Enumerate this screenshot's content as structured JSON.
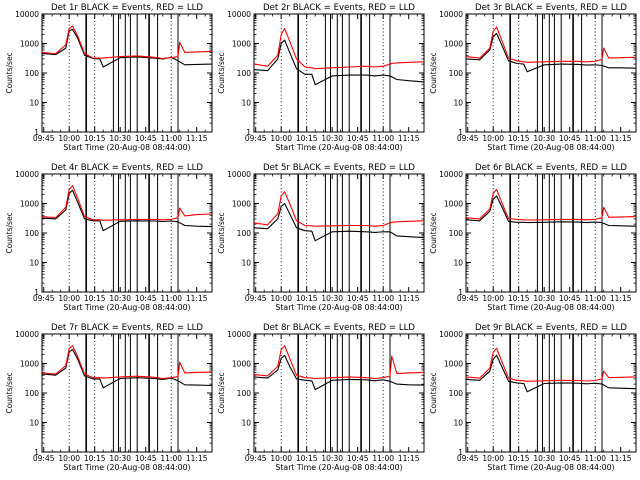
{
  "figure": {
    "xaxis_title": "Start Time (20-Aug-08 08:44:00)",
    "yaxis_title": "Counts/sec",
    "ytick_labels": [
      "1",
      "10",
      "100",
      "1000",
      "10000"
    ],
    "xtick_labels": [
      "09:45",
      "10:00",
      "10:15",
      "10:30",
      "10:45",
      "11:00",
      "11:15"
    ],
    "series_colors": {
      "Events": "#000000",
      "LLD": "#ff0000"
    }
  },
  "chart_data": [
    {
      "type": "line",
      "title": "Det 1r BLACK = Events, RED = LLD",
      "xlabel": "Start Time (20-Aug-08 08:44:00)",
      "ylabel": "Counts/sec",
      "xlim": [
        "09:44",
        "11:24"
      ],
      "ylim": [
        1,
        10000
      ],
      "yscale": "log",
      "series": [
        {
          "name": "Events",
          "color": "#000000",
          "x": [
            "09:44",
            "09:52",
            "09:58",
            "10:00",
            "10:02",
            "10:05",
            "10:09",
            "10:14",
            "10:18",
            "10:20",
            "10:30",
            "10:40",
            "10:50",
            "10:55",
            "11:00",
            "11:04",
            "11:08",
            "11:15",
            "11:24"
          ],
          "values": [
            460,
            420,
            700,
            2700,
            3000,
            1500,
            400,
            310,
            300,
            160,
            330,
            350,
            320,
            300,
            340,
            260,
            190,
            195,
            200
          ]
        },
        {
          "name": "LLD",
          "color": "#ff0000",
          "x": [
            "09:44",
            "09:52",
            "09:58",
            "10:00",
            "10:02",
            "10:05",
            "10:09",
            "10:14",
            "10:18",
            "10:20",
            "10:30",
            "10:40",
            "10:50",
            "10:55",
            "11:00",
            "11:04",
            "11:05",
            "11:08",
            "11:15",
            "11:24"
          ],
          "values": [
            500,
            450,
            900,
            3200,
            3900,
            1800,
            460,
            320,
            320,
            320,
            360,
            380,
            340,
            310,
            330,
            360,
            1100,
            500,
            520,
            540
          ]
        }
      ]
    },
    {
      "type": "line",
      "title": "Det 2r BLACK = Events, RED = LLD",
      "xlabel": "Start Time (20-Aug-08 08:44:00)",
      "ylabel": "Counts/sec",
      "xlim": [
        "09:44",
        "11:24"
      ],
      "ylim": [
        1,
        10000
      ],
      "yscale": "log",
      "series": [
        {
          "name": "Events",
          "color": "#000000",
          "x": [
            "09:44",
            "09:52",
            "09:58",
            "10:00",
            "10:02",
            "10:05",
            "10:09",
            "10:14",
            "10:18",
            "10:20",
            "10:30",
            "10:40",
            "10:50",
            "10:55",
            "11:00",
            "11:04",
            "11:08",
            "11:15",
            "11:24"
          ],
          "values": [
            130,
            120,
            300,
            1000,
            1300,
            500,
            140,
            90,
            90,
            40,
            80,
            85,
            85,
            80,
            85,
            80,
            60,
            55,
            50
          ]
        },
        {
          "name": "LLD",
          "color": "#ff0000",
          "x": [
            "09:44",
            "09:52",
            "09:58",
            "10:00",
            "10:02",
            "10:05",
            "10:09",
            "10:14",
            "10:18",
            "10:20",
            "10:30",
            "10:40",
            "10:50",
            "10:55",
            "11:00",
            "11:04",
            "11:05",
            "11:08",
            "11:15",
            "11:24"
          ],
          "values": [
            200,
            170,
            400,
            2000,
            3200,
            1200,
            300,
            160,
            150,
            140,
            150,
            160,
            170,
            160,
            170,
            200,
            210,
            220,
            230,
            240
          ]
        }
      ]
    },
    {
      "type": "line",
      "title": "Det 3r BLACK = Events, RED = LLD",
      "xlabel": "Start Time (20-Aug-08 08:44:00)",
      "ylabel": "Counts/sec",
      "xlim": [
        "09:44",
        "11:24"
      ],
      "ylim": [
        1,
        10000
      ],
      "yscale": "log",
      "series": [
        {
          "name": "Events",
          "color": "#000000",
          "x": [
            "09:44",
            "09:52",
            "09:58",
            "10:00",
            "10:02",
            "10:05",
            "10:09",
            "10:14",
            "10:18",
            "10:20",
            "10:30",
            "10:40",
            "10:50",
            "10:55",
            "11:00",
            "11:04",
            "11:08",
            "11:15",
            "11:24"
          ],
          "values": [
            300,
            280,
            600,
            1700,
            2200,
            900,
            260,
            210,
            200,
            110,
            190,
            200,
            195,
            185,
            190,
            180,
            150,
            150,
            145
          ]
        },
        {
          "name": "LLD",
          "color": "#ff0000",
          "x": [
            "09:44",
            "09:52",
            "09:58",
            "10:00",
            "10:02",
            "10:05",
            "10:09",
            "10:14",
            "10:18",
            "10:20",
            "10:30",
            "10:40",
            "10:50",
            "10:55",
            "11:00",
            "11:04",
            "11:05",
            "11:08",
            "11:15",
            "11:24"
          ],
          "values": [
            360,
            320,
            700,
            2600,
            3600,
            1300,
            320,
            260,
            240,
            230,
            240,
            250,
            250,
            240,
            250,
            290,
            700,
            320,
            330,
            340
          ]
        }
      ]
    },
    {
      "type": "line",
      "title": "Det 4r BLACK = Events, RED = LLD",
      "xlabel": "Start Time (20-Aug-08 08:44:00)",
      "ylabel": "Counts/sec",
      "xlim": [
        "09:44",
        "11:24"
      ],
      "ylim": [
        1,
        10000
      ],
      "yscale": "log",
      "series": [
        {
          "name": "Events",
          "color": "#000000",
          "x": [
            "09:44",
            "09:52",
            "09:58",
            "10:00",
            "10:02",
            "10:05",
            "10:09",
            "10:14",
            "10:18",
            "10:20",
            "10:30",
            "10:40",
            "10:50",
            "10:55",
            "11:00",
            "11:04",
            "11:08",
            "11:15",
            "11:24"
          ],
          "values": [
            320,
            300,
            600,
            2200,
            2800,
            1100,
            300,
            260,
            260,
            120,
            250,
            260,
            255,
            245,
            255,
            240,
            180,
            170,
            165
          ]
        },
        {
          "name": "LLD",
          "color": "#ff0000",
          "x": [
            "09:44",
            "09:52",
            "09:58",
            "10:00",
            "10:02",
            "10:05",
            "10:09",
            "10:14",
            "10:18",
            "10:20",
            "10:30",
            "10:40",
            "10:50",
            "10:55",
            "11:00",
            "11:04",
            "11:05",
            "11:08",
            "11:15",
            "11:24"
          ],
          "values": [
            360,
            330,
            750,
            3000,
            4000,
            1500,
            360,
            280,
            280,
            270,
            280,
            290,
            290,
            280,
            290,
            330,
            700,
            380,
            420,
            440
          ]
        }
      ]
    },
    {
      "type": "line",
      "title": "Det 5r BLACK = Events, RED = LLD",
      "xlabel": "Start Time (20-Aug-08 08:44:00)",
      "ylabel": "Counts/sec",
      "xlim": [
        "09:44",
        "11:24"
      ],
      "ylim": [
        1,
        10000
      ],
      "yscale": "log",
      "series": [
        {
          "name": "Events",
          "color": "#000000",
          "x": [
            "09:44",
            "09:52",
            "09:58",
            "10:00",
            "10:02",
            "10:05",
            "10:09",
            "10:14",
            "10:18",
            "10:20",
            "10:30",
            "10:40",
            "10:50",
            "10:55",
            "11:00",
            "11:04",
            "11:08",
            "11:15",
            "11:24"
          ],
          "values": [
            150,
            140,
            300,
            800,
            1000,
            450,
            150,
            120,
            115,
            55,
            110,
            115,
            110,
            105,
            110,
            110,
            80,
            75,
            70
          ]
        },
        {
          "name": "LLD",
          "color": "#ff0000",
          "x": [
            "09:44",
            "09:52",
            "09:58",
            "10:00",
            "10:02",
            "10:05",
            "10:09",
            "10:14",
            "10:18",
            "10:20",
            "10:30",
            "10:40",
            "10:50",
            "10:55",
            "11:00",
            "11:04",
            "11:05",
            "11:08",
            "11:15",
            "11:24"
          ],
          "values": [
            220,
            190,
            450,
            1800,
            2500,
            1000,
            260,
            180,
            175,
            170,
            175,
            180,
            180,
            170,
            180,
            220,
            230,
            240,
            250,
            260
          ]
        }
      ]
    },
    {
      "type": "line",
      "title": "Det 6r BLACK = Events, RED = LLD",
      "xlabel": "Start Time (20-Aug-08 08:44:00)",
      "ylabel": "Counts/sec",
      "xlim": [
        "09:44",
        "11:24"
      ],
      "ylim": [
        1,
        10000
      ],
      "yscale": "log",
      "series": [
        {
          "name": "Events",
          "color": "#000000",
          "x": [
            "09:44",
            "09:52",
            "09:58",
            "10:00",
            "10:02",
            "10:05",
            "10:09",
            "10:14",
            "10:18",
            "10:20",
            "10:30",
            "10:40",
            "10:50",
            "10:55",
            "11:00",
            "11:04",
            "11:08",
            "11:15",
            "11:24"
          ],
          "values": [
            280,
            260,
            550,
            1400,
            1800,
            800,
            250,
            230,
            230,
            225,
            230,
            240,
            235,
            225,
            235,
            225,
            180,
            175,
            170
          ]
        },
        {
          "name": "LLD",
          "color": "#ff0000",
          "x": [
            "09:44",
            "09:52",
            "09:58",
            "10:00",
            "10:02",
            "10:05",
            "10:09",
            "10:14",
            "10:18",
            "10:20",
            "10:30",
            "10:40",
            "10:50",
            "10:55",
            "11:00",
            "11:04",
            "11:05",
            "11:08",
            "11:15",
            "11:24"
          ],
          "values": [
            330,
            300,
            650,
            2200,
            3000,
            1100,
            310,
            290,
            280,
            275,
            280,
            290,
            290,
            280,
            290,
            330,
            750,
            340,
            350,
            360
          ]
        }
      ]
    },
    {
      "type": "line",
      "title": "Det 7r BLACK = Events, RED = LLD",
      "xlabel": "Start Time (20-Aug-08 08:44:00)",
      "ylabel": "Counts/sec",
      "xlim": [
        "09:44",
        "11:24"
      ],
      "ylim": [
        1,
        10000
      ],
      "yscale": "log",
      "series": [
        {
          "name": "Events",
          "color": "#000000",
          "x": [
            "09:44",
            "09:52",
            "09:58",
            "10:00",
            "10:02",
            "10:05",
            "10:09",
            "10:14",
            "10:18",
            "10:20",
            "10:30",
            "10:40",
            "10:50",
            "10:55",
            "11:00",
            "11:04",
            "11:08",
            "11:15",
            "11:24"
          ],
          "values": [
            440,
            400,
            700,
            2500,
            3000,
            1400,
            380,
            300,
            300,
            150,
            310,
            330,
            310,
            290,
            320,
            260,
            190,
            185,
            180
          ]
        },
        {
          "name": "LLD",
          "color": "#ff0000",
          "x": [
            "09:44",
            "09:52",
            "09:58",
            "10:00",
            "10:02",
            "10:05",
            "10:09",
            "10:14",
            "10:18",
            "10:20",
            "10:30",
            "10:40",
            "10:50",
            "10:55",
            "11:00",
            "11:04",
            "11:05",
            "11:08",
            "11:15",
            "11:24"
          ],
          "values": [
            480,
            440,
            850,
            3200,
            4000,
            1700,
            440,
            330,
            330,
            320,
            350,
            370,
            340,
            310,
            330,
            360,
            1100,
            480,
            500,
            520
          ]
        }
      ]
    },
    {
      "type": "line",
      "title": "Det 8r BLACK = Events, RED = LLD",
      "xlabel": "Start Time (20-Aug-08 08:44:00)",
      "ylabel": "Counts/sec",
      "xlim": [
        "09:44",
        "11:24"
      ],
      "ylim": [
        1,
        10000
      ],
      "yscale": "log",
      "series": [
        {
          "name": "Events",
          "color": "#000000",
          "x": [
            "09:44",
            "09:52",
            "09:58",
            "10:00",
            "10:02",
            "10:05",
            "10:09",
            "10:14",
            "10:18",
            "10:20",
            "10:30",
            "10:40",
            "10:50",
            "10:55",
            "11:00",
            "11:04",
            "11:08",
            "11:15",
            "11:24"
          ],
          "values": [
            350,
            320,
            600,
            1500,
            1900,
            800,
            300,
            270,
            260,
            130,
            270,
            290,
            280,
            260,
            280,
            250,
            200,
            190,
            185
          ]
        },
        {
          "name": "LLD",
          "color": "#ff0000",
          "x": [
            "09:44",
            "09:52",
            "09:58",
            "10:00",
            "10:02",
            "10:05",
            "10:09",
            "10:14",
            "10:18",
            "10:20",
            "10:30",
            "10:40",
            "10:50",
            "10:55",
            "11:00",
            "11:04",
            "11:05",
            "11:08",
            "11:15",
            "11:24"
          ],
          "values": [
            420,
            380,
            800,
            3000,
            4000,
            1500,
            400,
            330,
            320,
            310,
            330,
            350,
            330,
            310,
            330,
            370,
            1800,
            460,
            480,
            500
          ]
        }
      ]
    },
    {
      "type": "line",
      "title": "Det 9r BLACK = Events, RED = LLD",
      "xlabel": "Start Time (20-Aug-08 08:44:00)",
      "ylabel": "Counts/sec",
      "xlim": [
        "09:44",
        "11:24"
      ],
      "ylim": [
        1,
        10000
      ],
      "yscale": "log",
      "series": [
        {
          "name": "Events",
          "color": "#000000",
          "x": [
            "09:44",
            "09:52",
            "09:58",
            "10:00",
            "10:02",
            "10:05",
            "10:09",
            "10:14",
            "10:18",
            "10:20",
            "10:30",
            "10:40",
            "10:50",
            "10:55",
            "11:00",
            "11:04",
            "11:08",
            "11:15",
            "11:24"
          ],
          "values": [
            290,
            270,
            550,
            1400,
            1900,
            800,
            250,
            220,
            210,
            110,
            210,
            220,
            215,
            205,
            215,
            200,
            150,
            145,
            140
          ]
        },
        {
          "name": "LLD",
          "color": "#ff0000",
          "x": [
            "09:44",
            "09:52",
            "09:58",
            "10:00",
            "10:02",
            "10:05",
            "10:09",
            "10:14",
            "10:18",
            "10:20",
            "10:30",
            "10:40",
            "10:50",
            "10:55",
            "11:00",
            "11:04",
            "11:05",
            "11:08",
            "11:15",
            "11:24"
          ],
          "values": [
            350,
            320,
            700,
            2400,
            3300,
            1200,
            320,
            270,
            260,
            250,
            260,
            270,
            265,
            255,
            265,
            300,
            550,
            330,
            340,
            350
          ]
        }
      ]
    }
  ]
}
